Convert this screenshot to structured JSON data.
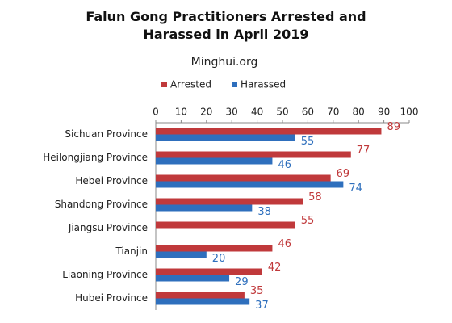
{
  "chart_data": {
    "type": "hbar",
    "title": "Falun Gong Practitioners Arrested and Harassed in April 2019",
    "subtitle": "Minghui.org",
    "categories": [
      "Sichuan Province",
      "Heilongjiang Province",
      "Hebei Province",
      "Shandong Province",
      "Jiangsu Province",
      "Tianjin",
      "Liaoning Province",
      "Hubei Province"
    ],
    "series": [
      {
        "name": "Arrested",
        "color": "#c0393b",
        "values": [
          89,
          77,
          69,
          58,
          55,
          46,
          42,
          35
        ]
      },
      {
        "name": "Harassed",
        "color": "#2e6fbd",
        "values": [
          55,
          46,
          74,
          38,
          null,
          20,
          29,
          37
        ]
      }
    ],
    "xlim": [
      0,
      100
    ],
    "xticks": [
      0,
      10,
      20,
      30,
      40,
      50,
      60,
      70,
      80,
      90,
      100
    ],
    "legend": "top"
  }
}
